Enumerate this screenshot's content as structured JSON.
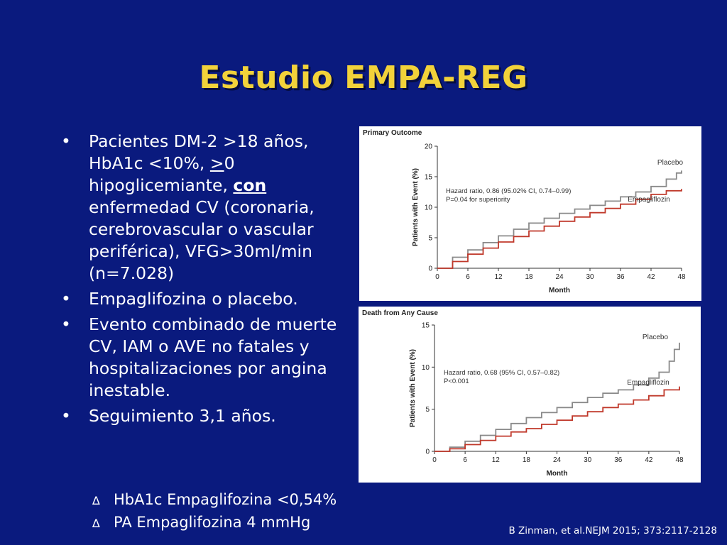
{
  "slide": {
    "title": "Estudio EMPA-REG",
    "bullets": [
      {
        "segments": [
          {
            "text": "Pacientes DM-2 >18 años, HbA1c <10%, ",
            "style": ""
          },
          {
            "text": ">",
            "style": "u"
          },
          {
            "text": "0 hipoglicemiante, ",
            "style": ""
          },
          {
            "text": "con",
            "style": "b"
          },
          {
            "text": " enfermedad CV (coronaria, cerebrovascular o vascular periférica), VFG>30ml/min (n=7.028)",
            "style": ""
          }
        ]
      },
      {
        "segments": [
          {
            "text": "Empaglifozina o placebo.",
            "style": ""
          }
        ]
      },
      {
        "segments": [
          {
            "text": "Evento combinado de muerte CV, IAM o AVE no fatales y hospitalizaciones por angina inestable.",
            "style": ""
          }
        ]
      },
      {
        "segments": [
          {
            "text": "Seguimiento 3,1 años.",
            "style": ""
          }
        ]
      }
    ],
    "notes": [
      {
        "symbol": "∆",
        "text": "HbA1c Empaglifozina <0,54%"
      },
      {
        "symbol": "∆",
        "text": "PA Empaglifozina 4 mmHg"
      }
    ],
    "citation": "B Zinman, et al.NEJM 2015; 373:2117-2128"
  },
  "colors": {
    "background": "#0a1a7e",
    "title": "#f2d23a",
    "placebo": "#8a8a8a",
    "empagliflozin": "#c0392b"
  },
  "chart_data": [
    {
      "type": "line",
      "title": "Primary Outcome",
      "xlabel": "Month",
      "ylabel": "Patients with Event (%)",
      "xlim": [
        0,
        48
      ],
      "ylim": [
        0,
        20
      ],
      "xticks": [
        0,
        6,
        12,
        18,
        24,
        30,
        36,
        42,
        48
      ],
      "yticks": [
        0,
        5,
        10,
        15,
        20
      ],
      "annotation": [
        "Hazard ratio, 0.86 (95.02% CI, 0.74–0.99)",
        "P=0.04 for superiority"
      ],
      "series": [
        {
          "name": "Placebo",
          "color": "#8a8a8a",
          "x": [
            0,
            3,
            6,
            9,
            12,
            15,
            18,
            21,
            24,
            27,
            30,
            33,
            36,
            39,
            42,
            45,
            47,
            48
          ],
          "y": [
            0,
            1.8,
            3.0,
            4.2,
            5.3,
            6.4,
            7.4,
            8.2,
            9.0,
            9.7,
            10.3,
            11.0,
            11.7,
            12.5,
            13.4,
            14.6,
            15.6,
            16.0
          ]
        },
        {
          "name": "Empagliflozin",
          "color": "#c0392b",
          "x": [
            0,
            3,
            6,
            9,
            12,
            15,
            18,
            21,
            24,
            27,
            30,
            33,
            36,
            39,
            42,
            45,
            48
          ],
          "y": [
            0,
            1.1,
            2.3,
            3.3,
            4.3,
            5.2,
            6.1,
            6.9,
            7.7,
            8.4,
            9.1,
            9.8,
            10.5,
            11.3,
            12.1,
            12.7,
            13.0
          ]
        }
      ]
    },
    {
      "type": "line",
      "title": "Death from Any Cause",
      "xlabel": "Month",
      "ylabel": "Patients with Event (%)",
      "xlim": [
        0,
        48
      ],
      "ylim": [
        0,
        15
      ],
      "xticks": [
        0,
        6,
        12,
        18,
        24,
        30,
        36,
        42,
        48
      ],
      "yticks": [
        0,
        5,
        10,
        15
      ],
      "annotation": [
        "Hazard ratio, 0.68 (95% CI, 0.57–0.82)",
        "P<0.001"
      ],
      "series": [
        {
          "name": "Placebo",
          "color": "#8a8a8a",
          "x": [
            0,
            3,
            6,
            9,
            12,
            15,
            18,
            21,
            24,
            27,
            30,
            33,
            36,
            39,
            42,
            44,
            46,
            47,
            48
          ],
          "y": [
            0,
            0.5,
            1.2,
            1.9,
            2.6,
            3.3,
            4.0,
            4.6,
            5.2,
            5.8,
            6.4,
            6.9,
            7.3,
            7.9,
            8.7,
            9.4,
            10.7,
            12.1,
            12.9
          ]
        },
        {
          "name": "Empagliflozin",
          "color": "#c0392b",
          "x": [
            0,
            3,
            6,
            9,
            12,
            15,
            18,
            21,
            24,
            27,
            30,
            33,
            36,
            39,
            42,
            45,
            48
          ],
          "y": [
            0,
            0.3,
            0.8,
            1.3,
            1.8,
            2.3,
            2.7,
            3.2,
            3.7,
            4.2,
            4.7,
            5.2,
            5.6,
            6.1,
            6.6,
            7.3,
            7.7
          ]
        }
      ]
    }
  ]
}
